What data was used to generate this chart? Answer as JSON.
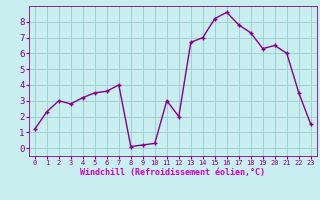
{
  "x": [
    0,
    1,
    2,
    3,
    4,
    5,
    6,
    7,
    8,
    9,
    10,
    11,
    12,
    13,
    14,
    15,
    16,
    17,
    18,
    19,
    20,
    21,
    22,
    23
  ],
  "y": [
    1.2,
    2.3,
    3.0,
    2.8,
    3.2,
    3.5,
    3.6,
    4.0,
    0.1,
    0.2,
    0.3,
    3.0,
    2.0,
    6.7,
    7.0,
    8.2,
    8.6,
    7.8,
    7.3,
    6.3,
    6.5,
    6.0,
    3.5,
    1.5
  ],
  "line_color": "#880088",
  "marker": "+",
  "bg_color": "#c8eef0",
  "grid_color": "#99cccc",
  "xlabel": "Windchill (Refroidissement éolien,°C)",
  "xlabel_color": "#cc00cc",
  "xlabel_bg": "#c8eef0",
  "ylim": [
    -0.5,
    9.0
  ],
  "xlim": [
    -0.5,
    23.5
  ],
  "yticks": [
    0,
    1,
    2,
    3,
    4,
    5,
    6,
    7,
    8
  ],
  "xticks": [
    0,
    1,
    2,
    3,
    4,
    5,
    6,
    7,
    8,
    9,
    10,
    11,
    12,
    13,
    14,
    15,
    16,
    17,
    18,
    19,
    20,
    21,
    22,
    23
  ],
  "tick_color": "#880088",
  "ytick_fontsize": 6.5,
  "xtick_fontsize": 5.0
}
